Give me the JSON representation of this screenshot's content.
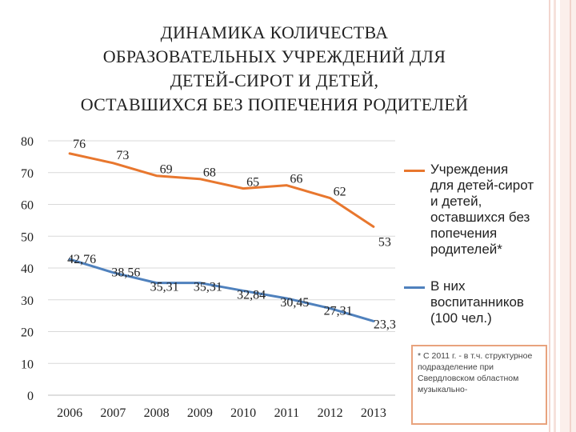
{
  "title_lines": [
    "ДИНАМИКА КОЛИЧЕСТВА",
    "ОБРАЗОВАТЕЛЬНЫХ  УЧРЕЖДЕНИЙ ДЛЯ",
    "ДЕТЕЙ-СИРОТ И ДЕТЕЙ,",
    "ОСТАВШИХСЯ БЕЗ ПОПЕЧЕНИЯ  РОДИТЕЛЕЙ"
  ],
  "legend": [
    {
      "lines": [
        "Учреждения",
        "для детей-сирот",
        "и детей,",
        "оставшихся без",
        "попечения",
        "родителей*"
      ],
      "color": "#e8772e"
    },
    {
      "lines": [
        "В них",
        "воспитанников",
        "(100 чел.)"
      ],
      "color": "#4f81bd"
    }
  ],
  "note": "* С 2011 г. - в т.ч. структурное подразделение при Свердловском областном музыкально-",
  "chart_data": {
    "type": "line",
    "categories": [
      "2006",
      "2007",
      "2008",
      "2009",
      "2010",
      "2011",
      "2012",
      "2013"
    ],
    "yticks": [
      "0",
      "10",
      "20",
      "30",
      "40",
      "50",
      "60",
      "70",
      "80"
    ],
    "ylim": [
      0,
      80
    ],
    "grid": true,
    "legend_position": "right",
    "series": [
      {
        "name": "Учреждения для детей-сирот и детей, оставшихся без попечения родителей*",
        "color": "#e8772e",
        "values": [
          76,
          73,
          69,
          68,
          65,
          66,
          62,
          53
        ],
        "labels": [
          "76",
          "73",
          "69",
          "68",
          "65",
          "66",
          "62",
          "53"
        ]
      },
      {
        "name": "В них воспитанников (100 чел.)",
        "color": "#4f81bd",
        "values": [
          42.76,
          38.56,
          35.31,
          35.31,
          32.84,
          30.45,
          27.31,
          23.3
        ],
        "labels": [
          "42,76",
          "38,56",
          "35,31",
          "35,31",
          "32,84",
          "30,45",
          "27,31",
          "23,3"
        ]
      }
    ]
  }
}
